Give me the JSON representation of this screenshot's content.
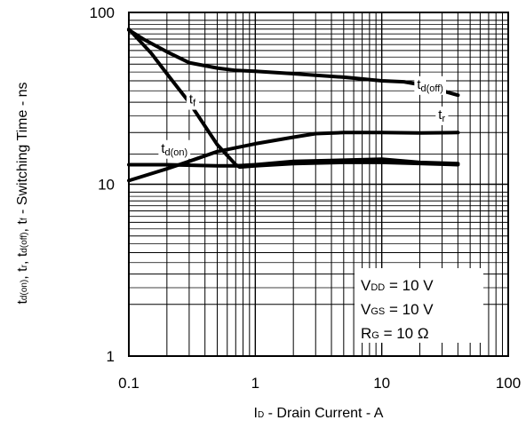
{
  "chart_data": {
    "type": "line",
    "x_scale": "log",
    "y_scale": "log",
    "xlim": [
      0.1,
      100
    ],
    "ylim": [
      1,
      100
    ],
    "grid": true,
    "x_ticks": [
      {
        "value": 0.1,
        "label": "0.1"
      },
      {
        "value": 1,
        "label": "1"
      },
      {
        "value": 10,
        "label": "10"
      },
      {
        "value": 100,
        "label": "100"
      }
    ],
    "y_ticks": [
      {
        "value": 1,
        "label": "1"
      },
      {
        "value": 10,
        "label": "10"
      },
      {
        "value": 100,
        "label": "100"
      }
    ],
    "xlabel": {
      "pre": "I",
      "sub": "D",
      "post": " - Drain Current - A"
    },
    "ylabel": {
      "parts": [
        {
          "t": "t",
          "s": false
        },
        {
          "t": "d(on)",
          "s": true
        },
        {
          "t": ", t",
          "s": false
        },
        {
          "t": "r",
          "s": true
        },
        {
          "t": ", t",
          "s": false
        },
        {
          "t": "d(off)",
          "s": true
        },
        {
          "t": ", t",
          "s": false
        },
        {
          "t": "f",
          "s": true
        },
        {
          "t": " - Switching Time - ns",
          "s": false
        }
      ]
    },
    "series": [
      {
        "name": "d(off)",
        "label_pos": [
          19,
          36
        ],
        "points": [
          [
            0.1,
            79
          ],
          [
            0.13,
            70
          ],
          [
            0.2,
            59
          ],
          [
            0.3,
            51
          ],
          [
            0.5,
            47.5
          ],
          [
            0.7,
            46
          ],
          [
            1,
            45.5
          ],
          [
            2,
            44
          ],
          [
            5,
            42
          ],
          [
            10,
            40
          ],
          [
            15,
            39.5
          ],
          [
            20,
            38
          ],
          [
            30,
            35
          ],
          [
            40,
            33
          ]
        ]
      },
      {
        "name": "f",
        "label_pos": [
          0.3,
          29.5
        ],
        "points": [
          [
            0.1,
            80
          ],
          [
            0.15,
            58
          ],
          [
            0.2,
            44
          ],
          [
            0.3,
            30
          ],
          [
            0.5,
            17
          ],
          [
            0.7,
            13
          ],
          [
            0.75,
            12.6
          ],
          [
            1,
            12.8
          ],
          [
            2,
            13.2
          ],
          [
            5,
            13.4
          ],
          [
            10,
            13.4
          ],
          [
            40,
            13
          ]
        ]
      },
      {
        "name": "r",
        "label_pos": [
          28,
          24
        ],
        "points": [
          [
            0.1,
            10.5
          ],
          [
            0.2,
            12.3
          ],
          [
            0.3,
            13.6
          ],
          [
            0.5,
            15.5
          ],
          [
            1,
            17.2
          ],
          [
            2,
            18.8
          ],
          [
            3,
            19.7
          ],
          [
            5,
            20
          ],
          [
            10,
            20
          ],
          [
            20,
            19.9
          ],
          [
            40,
            20
          ]
        ]
      },
      {
        "name": "d(on)",
        "label_pos": [
          0.18,
          15.3
        ],
        "points": [
          [
            0.1,
            13
          ],
          [
            0.2,
            13
          ],
          [
            0.5,
            12.8
          ],
          [
            0.7,
            12.8
          ],
          [
            1,
            13
          ],
          [
            2,
            13.6
          ],
          [
            5,
            13.8
          ],
          [
            10,
            14
          ],
          [
            20,
            13.4
          ],
          [
            40,
            13.2
          ]
        ]
      }
    ],
    "conditions": [
      {
        "main": "V",
        "sub": "DD",
        "value": " = 10 V"
      },
      {
        "main": "V",
        "sub": "GS",
        "value": " = 10 V"
      },
      {
        "main": "R",
        "sub": "G",
        "value": " = 10 Ω"
      }
    ]
  }
}
